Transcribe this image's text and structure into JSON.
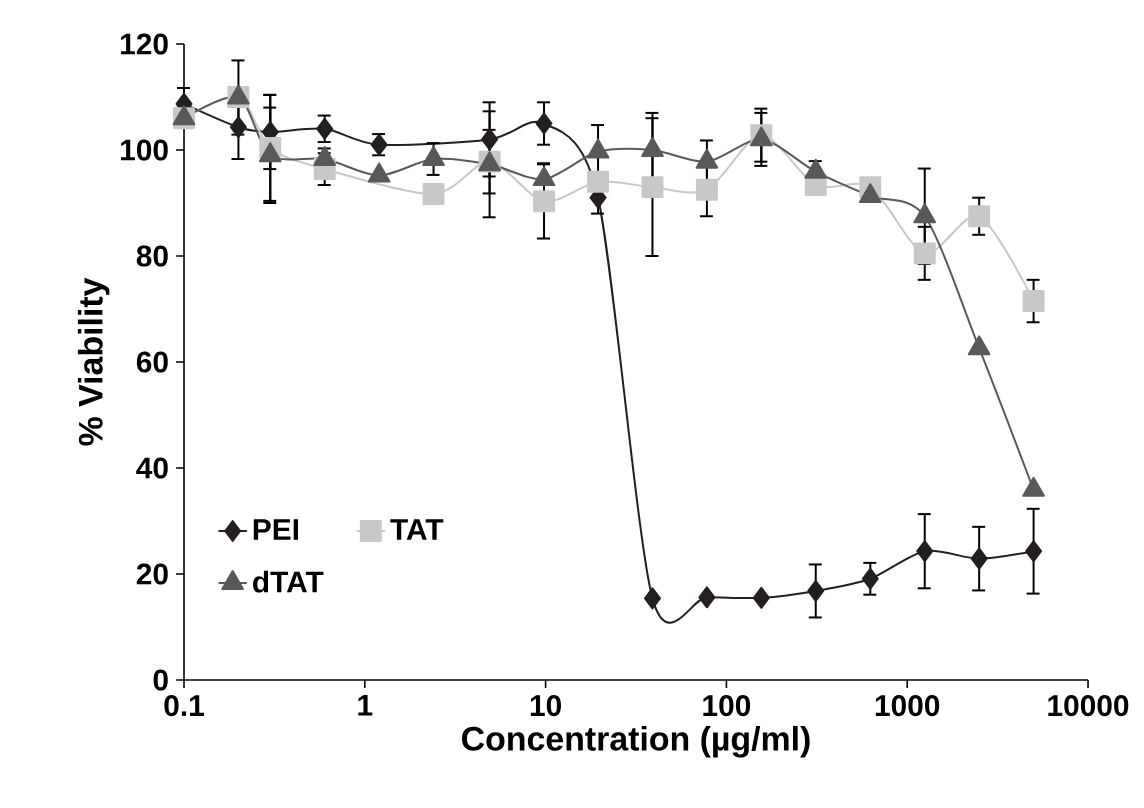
{
  "chart_data": {
    "type": "line",
    "xlabel": "Concentration (µg/ml)",
    "ylabel": "% Viability",
    "log": "x",
    "xlim": [
      0.1,
      10000
    ],
    "xticks": [
      0.1,
      1,
      10,
      100,
      1000,
      10000
    ],
    "ylim": [
      0,
      120
    ],
    "yticks": [
      0,
      20,
      40,
      60,
      80,
      100,
      120
    ],
    "grid": false,
    "legend": "bottom left",
    "line_style": "solid",
    "x": [
      0.1,
      0.2,
      0.3,
      0.6,
      1.2,
      2.4,
      4.9,
      9.8,
      19.5,
      39,
      78,
      156,
      312,
      625,
      1250,
      2500,
      5000
    ],
    "series": [
      {
        "name": "PEI",
        "color": "#231f20",
        "marker": "diamond",
        "values": [
          108.7,
          104.3,
          103.4,
          104,
          101,
          null,
          102,
          105,
          91,
          15.4,
          15.6,
          15.5,
          16.8,
          19.1,
          24.3,
          22.9,
          24.3
        ],
        "errors": [
          3,
          6,
          7,
          2.5,
          2,
          null,
          7,
          4,
          3,
          null,
          null,
          null,
          5,
          3,
          7,
          6,
          8
        ]
      },
      {
        "name": "TAT",
        "color": "#c8c8c8",
        "marker": "square",
        "values": [
          106,
          110,
          100.4,
          96.4,
          null,
          91.7,
          97.8,
          90.3,
          94,
          93,
          92.5,
          102.8,
          93.4,
          93,
          80.5,
          87.5,
          71.5
        ],
        "errors": [
          null,
          null,
          10,
          3,
          null,
          null,
          6,
          7,
          null,
          13,
          5,
          5,
          null,
          null,
          5,
          3.5,
          4
        ]
      },
      {
        "name": "dTAT",
        "color": "#58595b",
        "marker": "triangle",
        "values": [
          106,
          109.9,
          99,
          98.3,
          95.2,
          98.3,
          97.3,
          94.5,
          99.7,
          100,
          97.8,
          102,
          95.9,
          91.3,
          87.5,
          62.6,
          35.9
        ],
        "errors": [
          null,
          7,
          9,
          2,
          null,
          3,
          10,
          3,
          5,
          7,
          4,
          5,
          2,
          null,
          9,
          null,
          null
        ]
      }
    ]
  }
}
